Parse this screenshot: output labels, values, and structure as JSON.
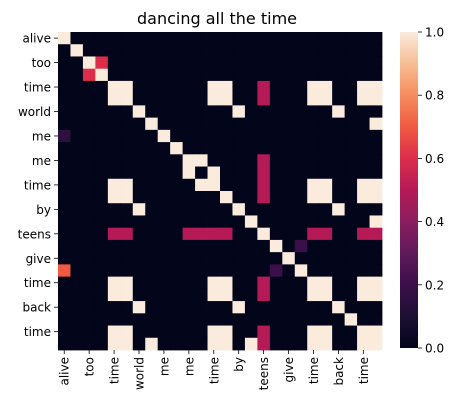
{
  "chart_data": {
    "type": "heatmap",
    "title": "dancing all the time",
    "xlabel": "",
    "ylabel": "",
    "row_labels": [
      "alive",
      "too",
      "time",
      "world",
      "me",
      "me",
      "time",
      "by",
      "teens",
      "give",
      "time",
      "back",
      "time"
    ],
    "col_labels": [
      "alive",
      "too",
      "time",
      "world",
      "me",
      "me",
      "time",
      "by",
      "teens",
      "give",
      "time",
      "back",
      "time"
    ],
    "y_tick_labels": [
      "alive",
      "too",
      "time",
      "world",
      "me",
      "me",
      "time",
      "by",
      "teens",
      "give",
      "time",
      "back",
      "time"
    ],
    "x_tick_labels": [
      "alive",
      "too",
      "time",
      "world",
      "me",
      "me",
      "time",
      "by",
      "teens",
      "give",
      "time",
      "back",
      "time"
    ],
    "colorbar": {
      "min": 0.0,
      "max": 1.0,
      "tick_labels": [
        "0.0",
        "0.2",
        "0.4",
        "0.6",
        "0.8",
        "1.0"
      ],
      "tick_values": [
        0.0,
        0.2,
        0.4,
        0.6,
        0.8,
        1.0
      ],
      "colormap": "rocket"
    },
    "values": [
      [
        1,
        0,
        0,
        0,
        0,
        0,
        0,
        0,
        0,
        0,
        0,
        0,
        0,
        0,
        0,
        0,
        0,
        0,
        0,
        0,
        0,
        0,
        0,
        0,
        0,
        0
      ],
      [
        0,
        1,
        0,
        0,
        0,
        0,
        0,
        0,
        0,
        0,
        0,
        0,
        0,
        0,
        0,
        0,
        0,
        0,
        0,
        0,
        0,
        0,
        0,
        0,
        0,
        0
      ],
      [
        0,
        0,
        1,
        0.6,
        0,
        0,
        0,
        0,
        0,
        0,
        0,
        0,
        0,
        0,
        0,
        0,
        0,
        0,
        0,
        0,
        0,
        0,
        0,
        0,
        0,
        0
      ],
      [
        0,
        0,
        0.6,
        1,
        0,
        0,
        0,
        0,
        0,
        0,
        0,
        0,
        0,
        0,
        0,
        0,
        0,
        0,
        0,
        0,
        0,
        0,
        0,
        0,
        0,
        0
      ],
      [
        0,
        0,
        0,
        0,
        1,
        1,
        0,
        0,
        0,
        0,
        0,
        0,
        1,
        1,
        0,
        0,
        0.5,
        0,
        0,
        0,
        1,
        1,
        0,
        0,
        1,
        1
      ],
      [
        0,
        0,
        0,
        0,
        1,
        1,
        0,
        0,
        0,
        0,
        0,
        0,
        1,
        1,
        0,
        0,
        0.5,
        0,
        0,
        0,
        1,
        1,
        0,
        0,
        1,
        1
      ],
      [
        0,
        0,
        0,
        0,
        0,
        0,
        1,
        0,
        0,
        0,
        0,
        0,
        0,
        0,
        1,
        0,
        0,
        0,
        0,
        0,
        0,
        0,
        1,
        0,
        0,
        0
      ],
      [
        0,
        0,
        0,
        0,
        0,
        0,
        0,
        1,
        0,
        0,
        0,
        0,
        0,
        0,
        0,
        0,
        0,
        0,
        0,
        0,
        0,
        0,
        0,
        0,
        0,
        1
      ],
      [
        0.15,
        0,
        0,
        0,
        0,
        0,
        0,
        0,
        1,
        0,
        0,
        0,
        0,
        0,
        0,
        0,
        0,
        0,
        0,
        0,
        0,
        0,
        0,
        0,
        0,
        0
      ],
      [
        0,
        0,
        0,
        0,
        0,
        0,
        0,
        0,
        0,
        1,
        0,
        0,
        0,
        0,
        0,
        0,
        0,
        0,
        0,
        0,
        0,
        0,
        0,
        0,
        0,
        0
      ],
      [
        0,
        0,
        0,
        0,
        0,
        0,
        0,
        0,
        0,
        0,
        1,
        1,
        0,
        0,
        0,
        0,
        0.5,
        0,
        0,
        0,
        0,
        0,
        0,
        0,
        0,
        0
      ],
      [
        0,
        0,
        0,
        0,
        0,
        0,
        0,
        0,
        0,
        0,
        1,
        0,
        1,
        0,
        0,
        0,
        0.5,
        0,
        0,
        0,
        0,
        0,
        0,
        0,
        0,
        0
      ],
      [
        0,
        0,
        0,
        0,
        1,
        1,
        0,
        0,
        0,
        0,
        0,
        1,
        1,
        0,
        0,
        0,
        0.5,
        0,
        0,
        0,
        1,
        1,
        0,
        0,
        1,
        1
      ],
      [
        0,
        0,
        0,
        0,
        1,
        1,
        0,
        0,
        0,
        0,
        0,
        0,
        0,
        1,
        0,
        0,
        0.5,
        0,
        0,
        0,
        1,
        1,
        0,
        0,
        1,
        1
      ],
      [
        0,
        0,
        0,
        0,
        0,
        0,
        1,
        0,
        0,
        0,
        0,
        0,
        0,
        0,
        1,
        0,
        0,
        0,
        0,
        0,
        0,
        0,
        1,
        0,
        0,
        0
      ],
      [
        0,
        0,
        0,
        0,
        0,
        0,
        0,
        0,
        0,
        0,
        0,
        0,
        0,
        0,
        0,
        1,
        0,
        0,
        0,
        0,
        0,
        0,
        0,
        0,
        0,
        1
      ],
      [
        0,
        0,
        0,
        0,
        0.5,
        0.5,
        0,
        0,
        0,
        0,
        0.5,
        0.5,
        0.5,
        0.5,
        0,
        0,
        1,
        0,
        0,
        0,
        0.5,
        0.5,
        0,
        0,
        0.5,
        0.5
      ],
      [
        0,
        0,
        0,
        0,
        0,
        0,
        0,
        0,
        0,
        0,
        0,
        0,
        0,
        0,
        0,
        0,
        0,
        1,
        0,
        0.2,
        0,
        0,
        0,
        0,
        0,
        0
      ],
      [
        0,
        0,
        0,
        0,
        0,
        0,
        0,
        0,
        0,
        0,
        0,
        0,
        0,
        0,
        0,
        0,
        0,
        0,
        1,
        0,
        0,
        0,
        0,
        0,
        0,
        0
      ],
      [
        0.7,
        0,
        0,
        0,
        0,
        0,
        0,
        0,
        0,
        0,
        0,
        0,
        0,
        0,
        0,
        0,
        0,
        0.2,
        0,
        1,
        0,
        0,
        0,
        0,
        0,
        0
      ],
      [
        0,
        0,
        0,
        0,
        1,
        1,
        0,
        0,
        0,
        0,
        0,
        0,
        1,
        1,
        0,
        0,
        0.5,
        0,
        0,
        0,
        1,
        1,
        0,
        0,
        1,
        1
      ],
      [
        0,
        0,
        0,
        0,
        1,
        1,
        0,
        0,
        0,
        0,
        0,
        0,
        1,
        1,
        0,
        0,
        0.5,
        0,
        0,
        0,
        1,
        1,
        0,
        0,
        1,
        1
      ],
      [
        0,
        0,
        0,
        0,
        0,
        0,
        1,
        0,
        0,
        0,
        0,
        0,
        0,
        0,
        1,
        0,
        0,
        0,
        0,
        0,
        0,
        0,
        1,
        0,
        0,
        0
      ],
      [
        0,
        0,
        0,
        0,
        0,
        0,
        0,
        0,
        0,
        0,
        0,
        0,
        0,
        0,
        0,
        0,
        0,
        0,
        0,
        0,
        0,
        0,
        0,
        1,
        0,
        0
      ],
      [
        0,
        0,
        0,
        0,
        1,
        1,
        0,
        0,
        0,
        0,
        0,
        0,
        1,
        1,
        0,
        0,
        0.5,
        0,
        0,
        0,
        1,
        1,
        0,
        0,
        1,
        1
      ],
      [
        0,
        0,
        0,
        0,
        1,
        1,
        0,
        1,
        0,
        0,
        0,
        0,
        1,
        1,
        0,
        1,
        0.5,
        0,
        0,
        0,
        1,
        1,
        0,
        0,
        1,
        1
      ]
    ]
  }
}
